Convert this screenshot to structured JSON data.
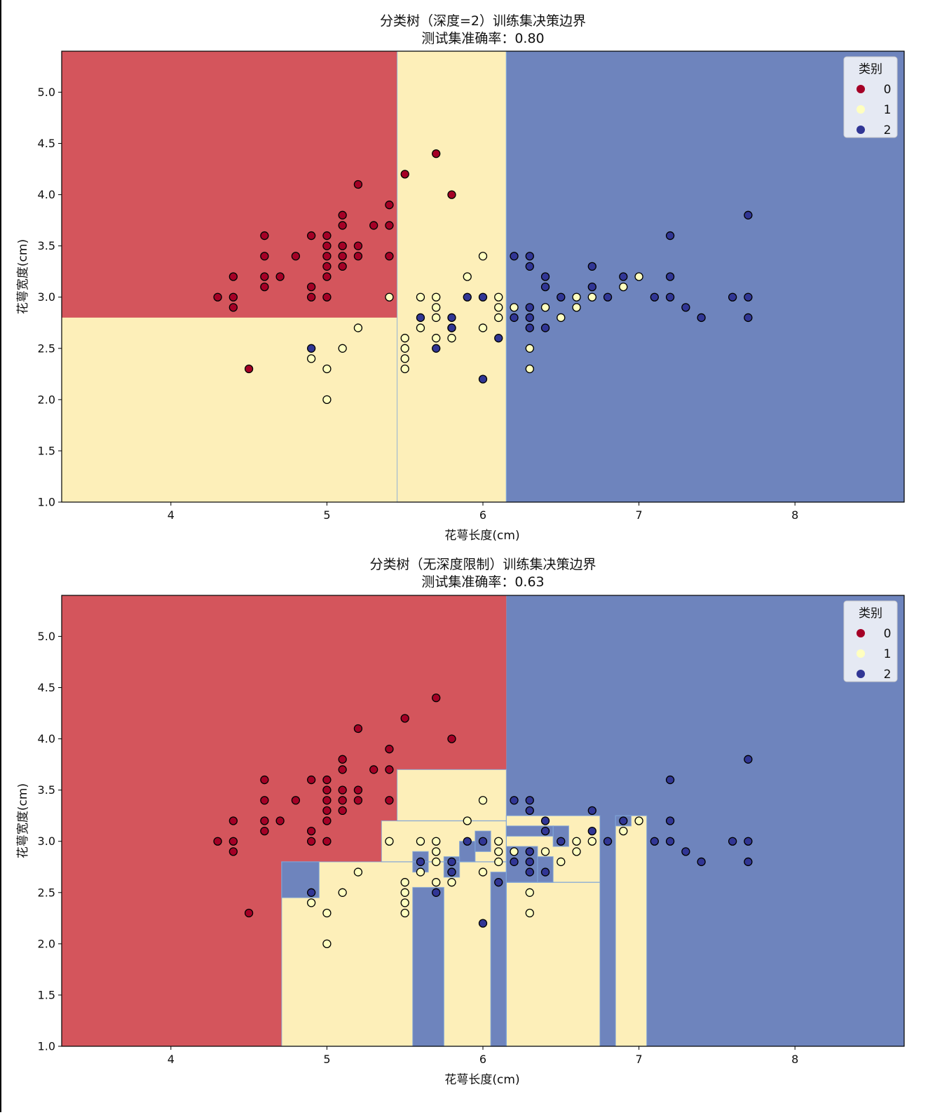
{
  "figure": {
    "colors": {
      "class0": "#a50026",
      "class1": "#ffffbf",
      "class2": "#313695",
      "region0": "#d4555c",
      "region1": "#fdefb9",
      "region2": "#6e84bd",
      "edge": "#000000"
    }
  },
  "chart_data": [
    {
      "type": "scatter",
      "title": "分类树（深度=2）训练集决策边界",
      "subtitle": "测试集准确率：0.80",
      "xlabel": "花萼长度(cm)",
      "ylabel": "花萼宽度(cm)",
      "xlim": [
        3.3,
        8.7
      ],
      "ylim": [
        1.0,
        5.4
      ],
      "xticks": [
        4,
        5,
        6,
        7,
        8
      ],
      "yticks": [
        1.0,
        1.5,
        2.0,
        2.5,
        3.0,
        3.5,
        4.0,
        4.5,
        5.0
      ],
      "grid": false,
      "legend": {
        "title": "类别",
        "position": "top-right",
        "entries": [
          "0",
          "1",
          "2"
        ]
      },
      "decision_regions": [
        {
          "class": 0,
          "x": [
            3.3,
            5.45
          ],
          "y": [
            2.8,
            5.4
          ]
        },
        {
          "class": 1,
          "x": [
            3.3,
            5.45
          ],
          "y": [
            1.0,
            2.8
          ]
        },
        {
          "class": 1,
          "x": [
            5.45,
            6.15
          ],
          "y": [
            1.0,
            5.4
          ]
        },
        {
          "class": 2,
          "x": [
            6.15,
            8.7
          ],
          "y": [
            1.0,
            5.4
          ]
        }
      ],
      "series": [
        {
          "name": "0",
          "points": [
            [
              4.3,
              3.0
            ],
            [
              4.4,
              3.2
            ],
            [
              4.4,
              3.0
            ],
            [
              4.4,
              2.9
            ],
            [
              4.5,
              2.3
            ],
            [
              4.6,
              3.6
            ],
            [
              4.6,
              3.4
            ],
            [
              4.6,
              3.2
            ],
            [
              4.6,
              3.1
            ],
            [
              4.7,
              3.2
            ],
            [
              4.8,
              3.4
            ],
            [
              4.9,
              3.6
            ],
            [
              4.9,
              3.1
            ],
            [
              4.9,
              3.0
            ],
            [
              5.0,
              3.6
            ],
            [
              5.0,
              3.5
            ],
            [
              5.0,
              3.4
            ],
            [
              5.0,
              3.3
            ],
            [
              5.0,
              3.2
            ],
            [
              5.0,
              3.0
            ],
            [
              5.1,
              3.8
            ],
            [
              5.1,
              3.7
            ],
            [
              5.1,
              3.5
            ],
            [
              5.1,
              3.4
            ],
            [
              5.1,
              3.3
            ],
            [
              5.2,
              4.1
            ],
            [
              5.2,
              3.5
            ],
            [
              5.2,
              3.4
            ],
            [
              5.3,
              3.7
            ],
            [
              5.4,
              3.9
            ],
            [
              5.4,
              3.7
            ],
            [
              5.4,
              3.4
            ],
            [
              5.5,
              4.2
            ],
            [
              5.7,
              4.4
            ],
            [
              5.8,
              4.0
            ]
          ]
        },
        {
          "name": "1",
          "points": [
            [
              4.9,
              2.4
            ],
            [
              5.0,
              2.3
            ],
            [
              5.0,
              2.0
            ],
            [
              5.1,
              2.5
            ],
            [
              5.2,
              2.7
            ],
            [
              5.4,
              3.0
            ],
            [
              5.5,
              2.6
            ],
            [
              5.5,
              2.5
            ],
            [
              5.5,
              2.4
            ],
            [
              5.5,
              2.3
            ],
            [
              5.6,
              3.0
            ],
            [
              5.6,
              2.7
            ],
            [
              5.7,
              3.0
            ],
            [
              5.7,
              2.9
            ],
            [
              5.7,
              2.8
            ],
            [
              5.7,
              2.6
            ],
            [
              5.8,
              2.7
            ],
            [
              5.8,
              2.6
            ],
            [
              5.9,
              3.2
            ],
            [
              6.0,
              3.4
            ],
            [
              6.0,
              2.7
            ],
            [
              6.1,
              3.0
            ],
            [
              6.1,
              2.9
            ],
            [
              6.1,
              2.8
            ],
            [
              6.2,
              2.9
            ],
            [
              6.3,
              2.5
            ],
            [
              6.3,
              2.3
            ],
            [
              6.4,
              2.9
            ],
            [
              6.5,
              2.8
            ],
            [
              6.6,
              3.0
            ],
            [
              6.6,
              2.9
            ],
            [
              6.7,
              3.0
            ],
            [
              6.9,
              3.1
            ],
            [
              7.0,
              3.2
            ]
          ]
        },
        {
          "name": "2",
          "points": [
            [
              4.9,
              2.5
            ],
            [
              5.6,
              2.8
            ],
            [
              5.7,
              2.5
            ],
            [
              5.8,
              2.8
            ],
            [
              5.8,
              2.7
            ],
            [
              5.9,
              3.0
            ],
            [
              6.0,
              3.0
            ],
            [
              6.0,
              2.2
            ],
            [
              6.1,
              2.6
            ],
            [
              6.2,
              3.4
            ],
            [
              6.2,
              2.8
            ],
            [
              6.3,
              3.4
            ],
            [
              6.3,
              3.3
            ],
            [
              6.3,
              2.9
            ],
            [
              6.3,
              2.8
            ],
            [
              6.3,
              2.7
            ],
            [
              6.4,
              3.2
            ],
            [
              6.4,
              3.1
            ],
            [
              6.4,
              2.7
            ],
            [
              6.5,
              3.0
            ],
            [
              6.7,
              3.3
            ],
            [
              6.7,
              3.1
            ],
            [
              6.8,
              3.0
            ],
            [
              6.9,
              3.2
            ],
            [
              7.1,
              3.0
            ],
            [
              7.2,
              3.6
            ],
            [
              7.2,
              3.2
            ],
            [
              7.2,
              3.0
            ],
            [
              7.3,
              2.9
            ],
            [
              7.4,
              2.8
            ],
            [
              7.6,
              3.0
            ],
            [
              7.7,
              3.8
            ],
            [
              7.7,
              3.0
            ],
            [
              7.7,
              2.8
            ]
          ]
        }
      ]
    },
    {
      "type": "scatter",
      "title": "分类树（无深度限制）训练集决策边界",
      "subtitle": "测试集准确率：0.63",
      "xlabel": "花萼长度(cm)",
      "ylabel": "花萼宽度(cm)",
      "xlim": [
        3.3,
        8.7
      ],
      "ylim": [
        1.0,
        5.4
      ],
      "xticks": [
        4,
        5,
        6,
        7,
        8
      ],
      "yticks": [
        1.0,
        1.5,
        2.0,
        2.5,
        3.0,
        3.5,
        4.0,
        4.5,
        5.0
      ],
      "grid": false,
      "legend": {
        "title": "类别",
        "position": "top-right",
        "entries": [
          "0",
          "1",
          "2"
        ]
      },
      "decision_regions": [
        {
          "class": 0,
          "x": [
            3.3,
            6.15
          ],
          "y": [
            1.0,
            5.4
          ]
        },
        {
          "class": 2,
          "x": [
            6.15,
            8.7
          ],
          "y": [
            1.0,
            5.4
          ]
        },
        {
          "class": 1,
          "x": [
            4.71,
            6.15
          ],
          "y": [
            1.0,
            2.8
          ]
        },
        {
          "class": 1,
          "x": [
            5.35,
            6.15
          ],
          "y": [
            2.8,
            3.2
          ]
        },
        {
          "class": 1,
          "x": [
            5.45,
            6.15
          ],
          "y": [
            3.2,
            3.7
          ]
        },
        {
          "class": 2,
          "x": [
            4.71,
            4.95
          ],
          "y": [
            2.45,
            2.8
          ]
        },
        {
          "class": 2,
          "x": [
            5.55,
            5.75
          ],
          "y": [
            1.0,
            2.55
          ]
        },
        {
          "class": 2,
          "x": [
            6.05,
            6.15
          ],
          "y": [
            1.0,
            2.7
          ]
        },
        {
          "class": 2,
          "x": [
            5.55,
            5.65
          ],
          "y": [
            2.7,
            2.9
          ]
        },
        {
          "class": 2,
          "x": [
            5.75,
            5.85
          ],
          "y": [
            2.65,
            2.85
          ]
        },
        {
          "class": 2,
          "x": [
            5.85,
            5.95
          ],
          "y": [
            2.8,
            3.0
          ]
        },
        {
          "class": 2,
          "x": [
            5.95,
            6.05
          ],
          "y": [
            2.9,
            3.1
          ]
        },
        {
          "class": 1,
          "x": [
            6.15,
            6.75
          ],
          "y": [
            1.0,
            2.6
          ]
        },
        {
          "class": 1,
          "x": [
            6.15,
            6.75
          ],
          "y": [
            2.6,
            3.25
          ]
        },
        {
          "class": 2,
          "x": [
            6.15,
            6.35
          ],
          "y": [
            2.6,
            2.95
          ]
        },
        {
          "class": 2,
          "x": [
            6.35,
            6.45
          ],
          "y": [
            2.6,
            2.85
          ]
        },
        {
          "class": 2,
          "x": [
            6.15,
            6.45
          ],
          "y": [
            3.05,
            3.15
          ]
        },
        {
          "class": 2,
          "x": [
            6.45,
            6.55
          ],
          "y": [
            2.95,
            3.15
          ]
        },
        {
          "class": 1,
          "x": [
            6.85,
            7.05
          ],
          "y": [
            1.0,
            3.25
          ]
        },
        {
          "class": 2,
          "x": [
            6.85,
            6.95
          ],
          "y": [
            3.15,
            3.25
          ]
        }
      ],
      "series": [
        {
          "name": "0",
          "points": [
            [
              4.3,
              3.0
            ],
            [
              4.4,
              3.2
            ],
            [
              4.4,
              3.0
            ],
            [
              4.4,
              2.9
            ],
            [
              4.5,
              2.3
            ],
            [
              4.6,
              3.6
            ],
            [
              4.6,
              3.4
            ],
            [
              4.6,
              3.2
            ],
            [
              4.6,
              3.1
            ],
            [
              4.7,
              3.2
            ],
            [
              4.8,
              3.4
            ],
            [
              4.9,
              3.6
            ],
            [
              4.9,
              3.1
            ],
            [
              4.9,
              3.0
            ],
            [
              5.0,
              3.6
            ],
            [
              5.0,
              3.5
            ],
            [
              5.0,
              3.4
            ],
            [
              5.0,
              3.3
            ],
            [
              5.0,
              3.2
            ],
            [
              5.0,
              3.0
            ],
            [
              5.1,
              3.8
            ],
            [
              5.1,
              3.7
            ],
            [
              5.1,
              3.5
            ],
            [
              5.1,
              3.4
            ],
            [
              5.1,
              3.3
            ],
            [
              5.2,
              4.1
            ],
            [
              5.2,
              3.5
            ],
            [
              5.2,
              3.4
            ],
            [
              5.3,
              3.7
            ],
            [
              5.4,
              3.9
            ],
            [
              5.4,
              3.7
            ],
            [
              5.4,
              3.4
            ],
            [
              5.5,
              4.2
            ],
            [
              5.7,
              4.4
            ],
            [
              5.8,
              4.0
            ]
          ]
        },
        {
          "name": "1",
          "points": [
            [
              4.9,
              2.4
            ],
            [
              5.0,
              2.3
            ],
            [
              5.0,
              2.0
            ],
            [
              5.1,
              2.5
            ],
            [
              5.2,
              2.7
            ],
            [
              5.4,
              3.0
            ],
            [
              5.5,
              2.6
            ],
            [
              5.5,
              2.5
            ],
            [
              5.5,
              2.4
            ],
            [
              5.5,
              2.3
            ],
            [
              5.6,
              3.0
            ],
            [
              5.6,
              2.7
            ],
            [
              5.7,
              3.0
            ],
            [
              5.7,
              2.9
            ],
            [
              5.7,
              2.8
            ],
            [
              5.7,
              2.6
            ],
            [
              5.8,
              2.7
            ],
            [
              5.8,
              2.6
            ],
            [
              5.9,
              3.2
            ],
            [
              6.0,
              3.4
            ],
            [
              6.0,
              2.7
            ],
            [
              6.1,
              3.0
            ],
            [
              6.1,
              2.9
            ],
            [
              6.1,
              2.8
            ],
            [
              6.2,
              2.9
            ],
            [
              6.3,
              2.5
            ],
            [
              6.3,
              2.3
            ],
            [
              6.4,
              2.9
            ],
            [
              6.5,
              2.8
            ],
            [
              6.6,
              3.0
            ],
            [
              6.6,
              2.9
            ],
            [
              6.7,
              3.0
            ],
            [
              6.9,
              3.1
            ],
            [
              7.0,
              3.2
            ]
          ]
        },
        {
          "name": "2",
          "points": [
            [
              4.9,
              2.5
            ],
            [
              5.6,
              2.8
            ],
            [
              5.7,
              2.5
            ],
            [
              5.8,
              2.8
            ],
            [
              5.8,
              2.7
            ],
            [
              5.9,
              3.0
            ],
            [
              6.0,
              3.0
            ],
            [
              6.0,
              2.2
            ],
            [
              6.1,
              2.6
            ],
            [
              6.2,
              3.4
            ],
            [
              6.2,
              2.8
            ],
            [
              6.3,
              3.4
            ],
            [
              6.3,
              3.3
            ],
            [
              6.3,
              2.9
            ],
            [
              6.3,
              2.8
            ],
            [
              6.3,
              2.7
            ],
            [
              6.4,
              3.2
            ],
            [
              6.4,
              3.1
            ],
            [
              6.4,
              2.7
            ],
            [
              6.5,
              3.0
            ],
            [
              6.7,
              3.3
            ],
            [
              6.7,
              3.1
            ],
            [
              6.8,
              3.0
            ],
            [
              6.9,
              3.2
            ],
            [
              7.1,
              3.0
            ],
            [
              7.2,
              3.6
            ],
            [
              7.2,
              3.2
            ],
            [
              7.2,
              3.0
            ],
            [
              7.3,
              2.9
            ],
            [
              7.4,
              2.8
            ],
            [
              7.6,
              3.0
            ],
            [
              7.7,
              3.8
            ],
            [
              7.7,
              3.0
            ],
            [
              7.7,
              2.8
            ]
          ]
        }
      ]
    }
  ]
}
